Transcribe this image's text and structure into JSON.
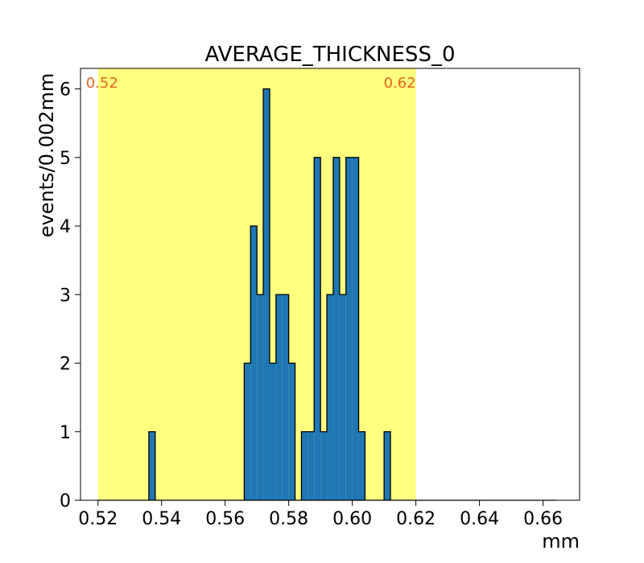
{
  "chart_data": {
    "type": "bar",
    "title": "AVERAGE_THICKNESS_0",
    "xlabel": "mm",
    "ylabel": "events/0.002mm",
    "xlim": [
      0.5145,
      0.6715
    ],
    "ylim": [
      0,
      6.3
    ],
    "bin_width": 0.002,
    "x_ticks": [
      0.52,
      0.54,
      0.56,
      0.58,
      0.6,
      0.62,
      0.64,
      0.66
    ],
    "x_tick_labels": [
      "0.52",
      "0.54",
      "0.56",
      "0.58",
      "0.60",
      "0.62",
      "0.64",
      "0.66"
    ],
    "y_ticks": [
      0,
      1,
      2,
      3,
      4,
      5,
      6
    ],
    "y_tick_labels": [
      "0",
      "1",
      "2",
      "3",
      "4",
      "5",
      "6"
    ],
    "grid": false,
    "highlight_band": {
      "x_start": 0.52,
      "x_end": 0.62,
      "color": "#ffff80",
      "label_start": "0.52",
      "label_end": "0.62",
      "label_color": "#e8641e"
    },
    "bar_color": "#1f77b4",
    "edge_color": "#000000",
    "bins": [
      {
        "x_start": 0.536,
        "value": 1
      },
      {
        "x_start": 0.566,
        "value": 2
      },
      {
        "x_start": 0.568,
        "value": 4
      },
      {
        "x_start": 0.57,
        "value": 3
      },
      {
        "x_start": 0.572,
        "value": 6
      },
      {
        "x_start": 0.574,
        "value": 2
      },
      {
        "x_start": 0.576,
        "value": 3
      },
      {
        "x_start": 0.578,
        "value": 3
      },
      {
        "x_start": 0.58,
        "value": 2
      },
      {
        "x_start": 0.584,
        "value": 1
      },
      {
        "x_start": 0.586,
        "value": 1
      },
      {
        "x_start": 0.588,
        "value": 5
      },
      {
        "x_start": 0.59,
        "value": 1
      },
      {
        "x_start": 0.592,
        "value": 3
      },
      {
        "x_start": 0.594,
        "value": 5
      },
      {
        "x_start": 0.596,
        "value": 3
      },
      {
        "x_start": 0.598,
        "value": 5
      },
      {
        "x_start": 0.6,
        "value": 5
      },
      {
        "x_start": 0.602,
        "value": 1
      },
      {
        "x_start": 0.61,
        "value": 1
      }
    ],
    "baseline_segments": [
      [
        0.52,
        0.664
      ]
    ]
  }
}
